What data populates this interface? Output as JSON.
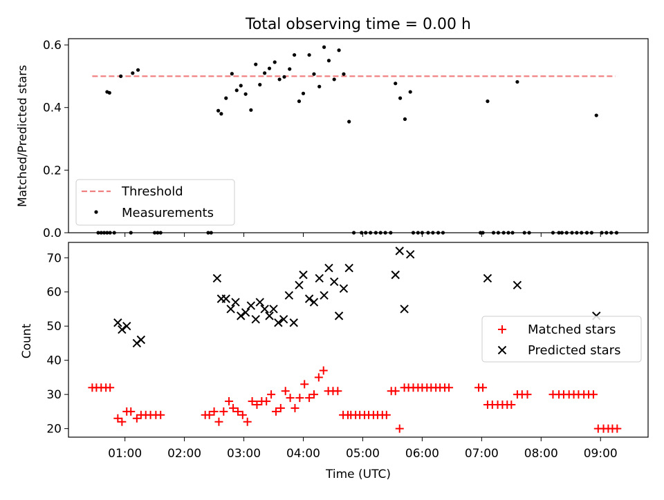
{
  "figure": {
    "title": "Total observing time = 0.00 h"
  },
  "chart_data": [
    {
      "type": "scatter",
      "ylabel": "Matched/Predicted stars",
      "ylim": [
        0,
        0.62
      ],
      "yticks": [
        "0.0",
        "0.2",
        "0.4",
        "0.6"
      ],
      "ytick_values": [
        0,
        0.2,
        0.4,
        0.6
      ],
      "xlim": [
        0.05,
        9.8
      ],
      "grid": false,
      "legend_position": "lower-left",
      "threshold": {
        "name": "Threshold",
        "value": 0.5,
        "x_range": [
          0.45,
          9.25
        ],
        "color": "#f08080"
      },
      "series": [
        {
          "name": "Measurements",
          "color": "#000000",
          "x": [
            0.7,
            0.74,
            0.93,
            1.13,
            1.22,
            0.55,
            0.6,
            0.65,
            0.7,
            0.75,
            0.82,
            1.1,
            1.5,
            1.55,
            1.6,
            2.4,
            2.45,
            2.57,
            2.62,
            2.7,
            2.8,
            2.88,
            2.95,
            3.03,
            3.12,
            3.2,
            3.27,
            3.35,
            3.43,
            3.52,
            3.6,
            3.68,
            3.77,
            3.85,
            3.93,
            4.0,
            4.1,
            4.18,
            4.27,
            4.35,
            4.43,
            4.52,
            4.6,
            4.68,
            4.77,
            4.85,
            4.98,
            5.05,
            5.13,
            5.22,
            5.3,
            5.38,
            5.47,
            5.55,
            5.63,
            5.71,
            5.8,
            5.85,
            5.93,
            6.0,
            6.1,
            6.18,
            6.27,
            6.35,
            6.98,
            7.02,
            7.1,
            7.2,
            7.28,
            7.37,
            7.45,
            7.52,
            7.6,
            7.72,
            7.8,
            8.2,
            8.3,
            8.35,
            8.43,
            8.52,
            8.6,
            8.68,
            8.77,
            8.85,
            8.93,
            9.02,
            9.1,
            9.18,
            9.27
          ],
          "y": [
            0.45,
            0.447,
            0.5,
            0.51,
            0.52,
            0,
            0,
            0,
            0,
            0,
            0,
            0,
            0,
            0,
            0,
            0,
            0,
            0.39,
            0.38,
            0.43,
            0.508,
            0.455,
            0.47,
            0.443,
            0.392,
            0.538,
            0.473,
            0.51,
            0.525,
            0.545,
            0.49,
            0.498,
            0.523,
            0.568,
            0.42,
            0.445,
            0.568,
            0.507,
            0.467,
            0.593,
            0.55,
            0.49,
            0.583,
            0.507,
            0.355,
            0,
            0,
            0,
            0,
            0,
            0,
            0,
            0,
            0.477,
            0.43,
            0.363,
            0.45,
            0,
            0,
            0,
            0,
            0,
            0,
            0,
            0,
            0,
            0.42,
            0,
            0,
            0,
            0,
            0,
            0.482,
            0,
            0,
            0,
            0,
            0,
            0,
            0,
            0,
            0,
            0,
            0,
            0.375,
            0,
            0,
            0,
            0
          ]
        }
      ]
    },
    {
      "type": "scatter",
      "xlabel": "Time (UTC)",
      "ylabel": "Count",
      "ylim": [
        17.5,
        74.5
      ],
      "yticks": [
        "20",
        "30",
        "40",
        "50",
        "60",
        "70"
      ],
      "ytick_values": [
        20,
        30,
        40,
        50,
        60,
        70
      ],
      "xlim": [
        0.05,
        9.8
      ],
      "xticks": [
        "01:00",
        "02:00",
        "03:00",
        "04:00",
        "05:00",
        "06:00",
        "07:00",
        "08:00",
        "09:00"
      ],
      "xtick_values": [
        1,
        2,
        3,
        4,
        5,
        6,
        7,
        8,
        9
      ],
      "grid": false,
      "legend_position": "center-right",
      "series": [
        {
          "name": "Matched stars",
          "color": "#ff0000",
          "marker": "plus",
          "x": [
            0.45,
            0.52,
            0.6,
            0.68,
            0.75,
            0.88,
            0.95,
            1.03,
            1.1,
            1.2,
            1.27,
            1.35,
            1.43,
            1.52,
            1.6,
            2.35,
            2.42,
            2.5,
            2.58,
            2.66,
            2.75,
            2.82,
            2.9,
            2.98,
            3.06,
            3.14,
            3.22,
            3.3,
            3.38,
            3.46,
            3.54,
            3.62,
            3.7,
            3.78,
            3.86,
            3.94,
            4.02,
            4.1,
            4.18,
            4.26,
            4.34,
            4.42,
            4.5,
            4.58,
            4.67,
            4.75,
            4.8,
            4.88,
            4.95,
            5.03,
            5.1,
            5.18,
            5.25,
            5.33,
            5.4,
            5.48,
            5.55,
            5.62,
            5.7,
            5.77,
            5.85,
            5.93,
            6.0,
            6.08,
            6.15,
            6.23,
            6.3,
            6.38,
            6.45,
            6.95,
            7.02,
            7.1,
            7.18,
            7.27,
            7.35,
            7.43,
            7.5,
            7.6,
            7.68,
            7.77,
            8.2,
            8.3,
            8.38,
            8.47,
            8.55,
            8.63,
            8.72,
            8.8,
            8.88,
            8.96,
            9.05,
            9.13,
            9.2,
            9.28
          ],
          "y": [
            32,
            32,
            32,
            32,
            32,
            23,
            22,
            25,
            25,
            23,
            24,
            24,
            24,
            24,
            24,
            24,
            24,
            25,
            22,
            25,
            28,
            26,
            25,
            24,
            22,
            28,
            27,
            28,
            28,
            30,
            25,
            26,
            31,
            29,
            26,
            29,
            33,
            29,
            30,
            35,
            37,
            31,
            31,
            31,
            24,
            24,
            24,
            24,
            24,
            24,
            24,
            24,
            24,
            24,
            24,
            31,
            31,
            20,
            32,
            32,
            32,
            32,
            32,
            32,
            32,
            32,
            32,
            32,
            32,
            32,
            32,
            27,
            27,
            27,
            27,
            27,
            27,
            30,
            30,
            30,
            30,
            30,
            30,
            30,
            30,
            30,
            30,
            30,
            30,
            20,
            20,
            20,
            20,
            20
          ]
        },
        {
          "name": "Predicted stars",
          "color": "#000000",
          "marker": "x",
          "x": [
            0.88,
            0.95,
            1.03,
            1.2,
            1.27,
            2.55,
            2.62,
            2.7,
            2.78,
            2.86,
            2.95,
            3.03,
            3.12,
            3.2,
            3.27,
            3.35,
            3.43,
            3.5,
            3.58,
            3.67,
            3.76,
            3.84,
            3.93,
            4.0,
            4.1,
            4.18,
            4.27,
            4.35,
            4.43,
            4.52,
            4.6,
            4.68,
            4.77,
            5.55,
            5.62,
            5.7,
            5.8,
            7.1,
            7.6,
            8.93
          ],
          "y": [
            51,
            49,
            50,
            45,
            46,
            64,
            58,
            58,
            55,
            57,
            53,
            54,
            56,
            52,
            57,
            55,
            53,
            55,
            51,
            52,
            59,
            51,
            62,
            65,
            58,
            57,
            64,
            59,
            67,
            63,
            53,
            61,
            67,
            65,
            72,
            55,
            71,
            64,
            62,
            53
          ]
        }
      ]
    }
  ]
}
